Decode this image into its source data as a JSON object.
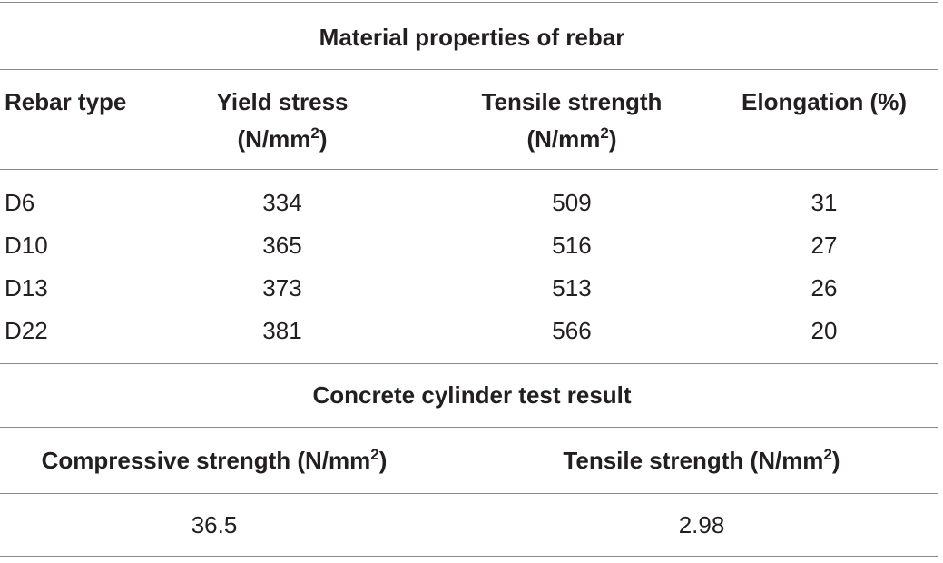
{
  "rebar_table": {
    "title": "Material properties of rebar",
    "headers": {
      "rebar_type": "Rebar type",
      "yield_stress_line1": "Yield stress",
      "yield_stress_unit": "(N/mm",
      "tensile_strength_line1": "Tensile strength",
      "tensile_strength_unit": "(N/mm",
      "elongation": "Elongation (%)",
      "unit_exponent": "2",
      "unit_close": ")"
    },
    "rows": [
      {
        "type": "D6",
        "yield": "334",
        "tensile": "509",
        "elongation": "31"
      },
      {
        "type": "D10",
        "yield": "365",
        "tensile": "516",
        "elongation": "27"
      },
      {
        "type": "D13",
        "yield": "373",
        "tensile": "513",
        "elongation": "26"
      },
      {
        "type": "D22",
        "yield": "381",
        "tensile": "566",
        "elongation": "20"
      }
    ]
  },
  "concrete_table": {
    "title": "Concrete cylinder test result",
    "headers": {
      "compressive": "Compressive strength (N/mm",
      "tensile": "Tensile strength (N/mm",
      "unit_exponent": "2",
      "unit_close": ")"
    },
    "values": {
      "compressive": "36.5",
      "tensile": "2.98"
    }
  }
}
